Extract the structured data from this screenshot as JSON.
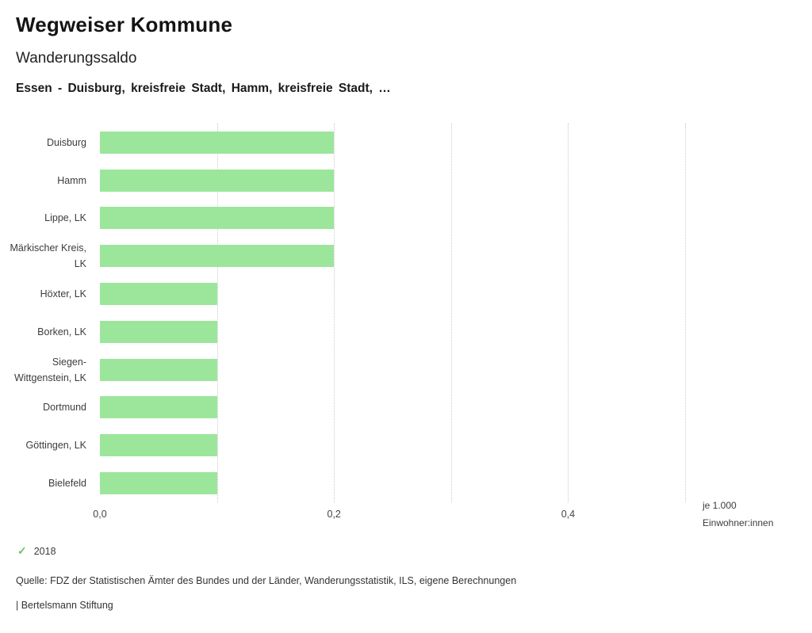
{
  "header": {
    "title": "Wegweiser Kommune",
    "subtitle": "Wanderungssaldo",
    "selection": "Essen - Duisburg, kreisfreie Stadt, Hamm, kreisfreie Stadt, …"
  },
  "chart_data": {
    "type": "bar",
    "orientation": "horizontal",
    "title": "Wanderungssaldo",
    "categories": [
      "Duisburg",
      "Hamm",
      "Lippe, LK",
      "Märkischer Kreis, LK",
      "Höxter, LK",
      "Borken, LK",
      "Siegen-Wittgenstein, LK",
      "Dortmund",
      "Göttingen, LK",
      "Bielefeld"
    ],
    "values": [
      0.2,
      0.2,
      0.2,
      0.2,
      0.1,
      0.1,
      0.1,
      0.1,
      0.1,
      0.1
    ],
    "series_label": "2018",
    "xlim": [
      0,
      0.5
    ],
    "x_ticks": [
      {
        "value": 0.0,
        "label": "0,0"
      },
      {
        "value": 0.2,
        "label": "0,2"
      },
      {
        "value": 0.4,
        "label": "0,4"
      }
    ],
    "gridlines": [
      0.1,
      0.2,
      0.3,
      0.4,
      0.5
    ],
    "grid": true,
    "legend_position": "bottom-left",
    "bar_color": "#9be69b",
    "unit_label_line1": "je 1.000",
    "unit_label_line2": "Einwohner:innen"
  },
  "legend": {
    "check_icon": "✓",
    "check_color": "#6fbf6f",
    "year": "2018"
  },
  "footer": {
    "source": "Quelle: FDZ der Statistischen Ämter des Bundes und der Länder, Wanderungsstatistik, ILS, eigene Berechnungen",
    "brand": "| Bertelsmann Stiftung"
  }
}
